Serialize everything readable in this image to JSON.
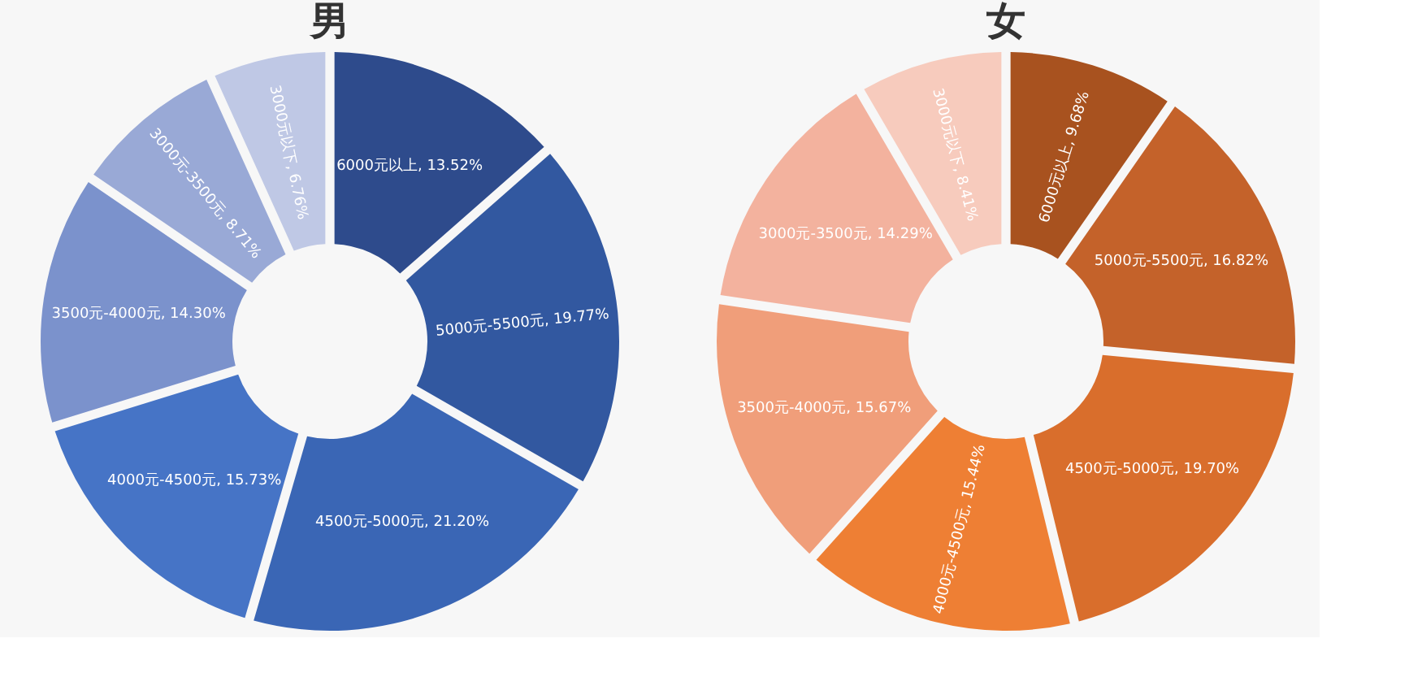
{
  "chart_data": [
    {
      "type": "donut",
      "title": "男",
      "categories": [
        "6000元以上",
        "5000元-5500元",
        "4500元-5000元",
        "4000元-4500元",
        "3500元-4000元",
        "3000元-3500元",
        "3000元以下"
      ],
      "values": [
        13.52,
        19.77,
        21.2,
        15.73,
        14.3,
        8.71,
        6.76
      ],
      "value_labels": [
        "13.52%",
        "19.77%",
        "21.20%",
        "15.73%",
        "14.30%",
        "8.71%",
        "6.76%"
      ],
      "colors": [
        "#2e4b8c",
        "#3258a0",
        "#3a66b5",
        "#4674c6",
        "#7b92cc",
        "#99a9d6",
        "#bfc8e5"
      ],
      "legend": false
    },
    {
      "type": "donut",
      "title": "女",
      "categories": [
        "6000元以上",
        "5000元-5500元",
        "4500元-5000元",
        "4000元-4500元",
        "3500元-4000元",
        "3000元-3500元",
        "3000元以下"
      ],
      "values": [
        9.68,
        16.82,
        19.7,
        15.44,
        15.67,
        14.29,
        8.41
      ],
      "value_labels": [
        "9.68%",
        "16.82%",
        "19.70%",
        "15.44%",
        "15.67%",
        "14.29%",
        "8.41%"
      ],
      "colors": [
        "#a8521f",
        "#c4622a",
        "#d96e2c",
        "#ee7f34",
        "#f09e7a",
        "#f3b29e",
        "#f7cbbd"
      ],
      "legend": false
    }
  ]
}
